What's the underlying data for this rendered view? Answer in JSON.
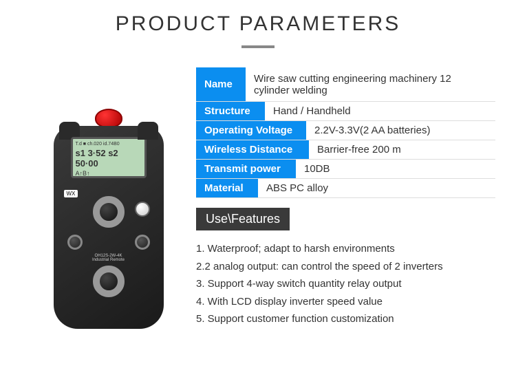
{
  "title": "PRODUCT PARAMETERS",
  "remote": {
    "screen_line1": "T.d ■ ch.020 id.74B0",
    "screen_line2": "s1 3·52  s2 50·00",
    "screen_line3": "A↑B↑",
    "brand": "WX",
    "model": "OH12S-2W-4K",
    "model_sub": "Industrial Remote"
  },
  "specs": [
    {
      "label": "Name",
      "value": "Wire saw cutting  engineering machinery 12 cylinder welding",
      "label_width": "72px",
      "multiline": true
    },
    {
      "label": "Structure",
      "value": "Hand / Handheld",
      "label_width": "100px"
    },
    {
      "label": "Operating Voltage",
      "value": "2.2V-3.3V(2 AA  batteries)",
      "label_width": "160px"
    },
    {
      "label": "Wireless  Distance",
      "value": "Barrier-free 200 m",
      "label_width": "164px"
    },
    {
      "label": "Transmit power",
      "value": "10DB",
      "label_width": "145px"
    },
    {
      "label": "Material",
      "value": "ABS  PC alloy",
      "label_width": "90px"
    }
  ],
  "features_header": "Use\\Features",
  "features": [
    "1. Waterproof; adapt to harsh environments",
    "2.2 analog output: can control the speed of 2 inverters",
    "3. Support 4-way switch quantity relay output",
    "4. With LCD display inverter speed value",
    "5. Support customer function customization"
  ],
  "colors": {
    "accent": "#0b8ef0",
    "dark": "#3a3a3a"
  }
}
